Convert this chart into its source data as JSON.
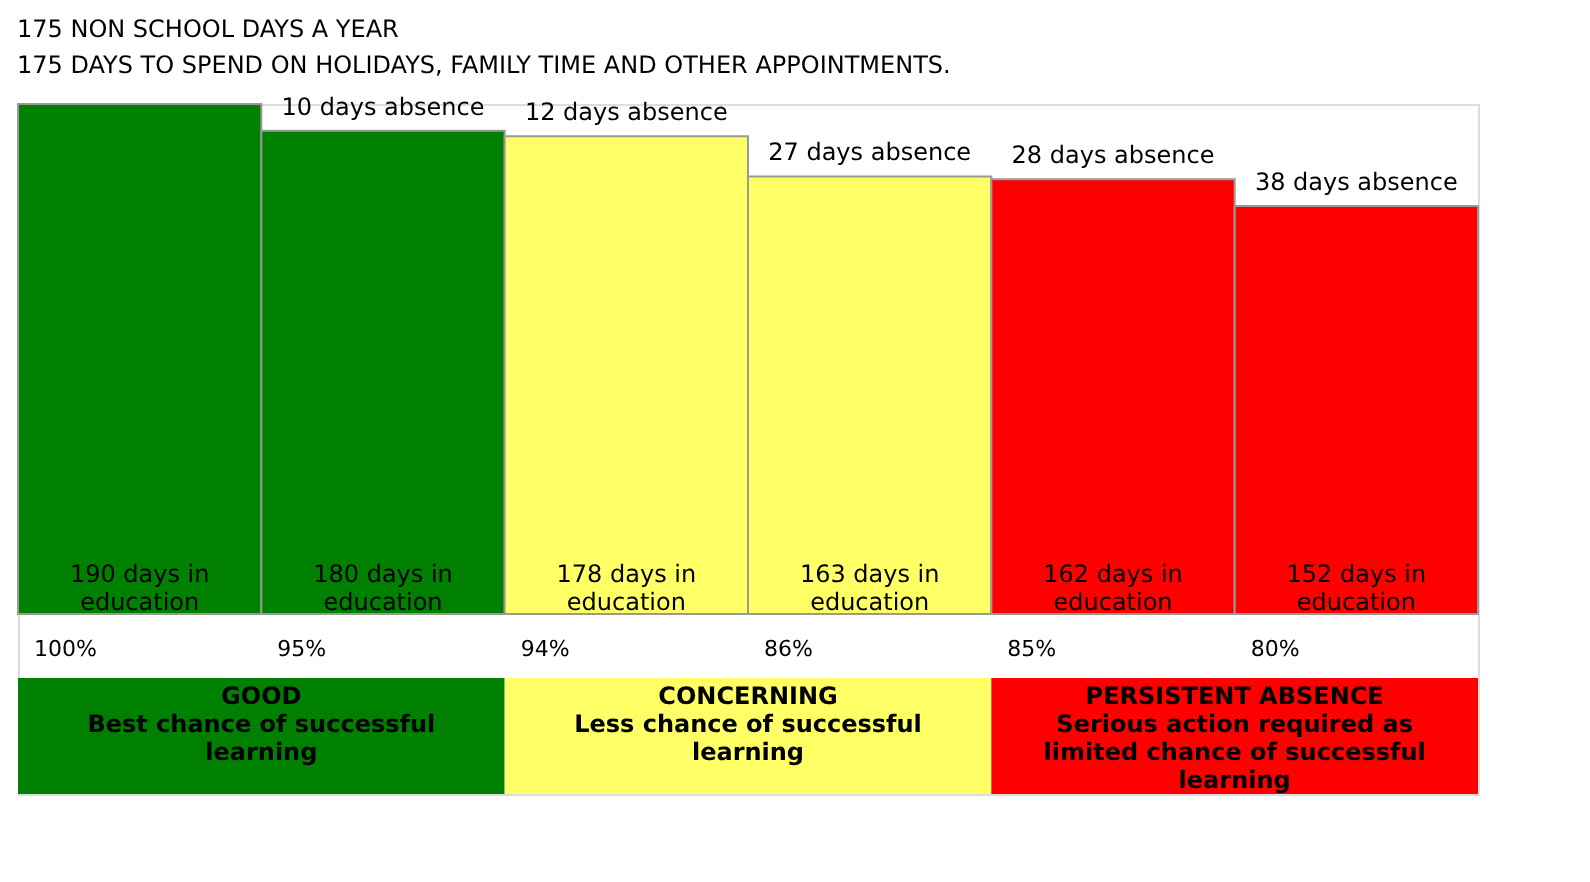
{
  "chart_data": {
    "type": "bar",
    "title": "175 NON SCHOOL DAYS A YEAR",
    "subtitle": "175 DAYS TO SPEND ON HOLIDAYS, FAMILY TIME AND OTHER APPOINTMENTS.",
    "categories": [
      null,
      null,
      null,
      null,
      null,
      null
    ],
    "values": [
      190,
      180,
      178,
      163,
      162,
      152
    ],
    "colors": [
      "#008000",
      "#008000",
      "#ffff66",
      "#ffff66",
      "#ff0000",
      "#ff0000"
    ],
    "value_labels": [
      "190 days in education",
      "180 days in education",
      "178 days in education",
      "163 days in education",
      "162 days in education",
      "152 days in education"
    ],
    "annotations": [
      "10 days absence",
      "12 days absence",
      "27 days absence",
      "28 days absence",
      "38 days absence",
      "100%",
      "95%",
      "94%",
      "86%",
      "85%",
      "80%",
      "GOOD\nBest chance of successful learning",
      "CONCERNING\nLess chance of successful learning",
      "PERSISTENT ABSENCE\nSerious action required as limited chance of successful learning"
    ]
  }
}
